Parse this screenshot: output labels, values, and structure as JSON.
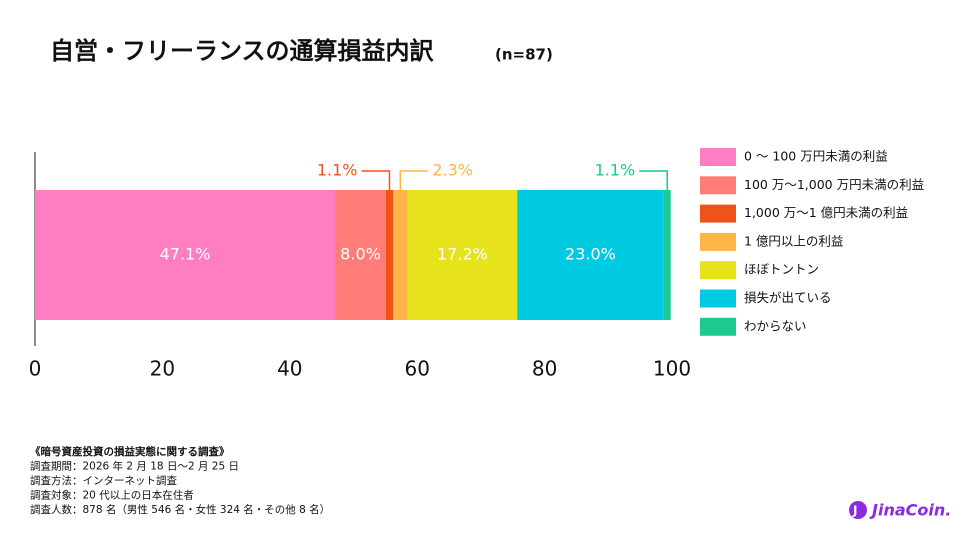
{
  "chart_data": {
    "type": "stacked-bar-horizontal",
    "title": "自営・フリーランスの通算損益内訳",
    "subtitle": "(n=87)",
    "series": [
      {
        "name": "0 〜 100 万円未満の利益",
        "color": "#ff7ec2",
        "values": [
          47.1
        ],
        "value_labels": [
          "47.1%"
        ]
      },
      {
        "name": "100 万〜1,000 万円未満の利益",
        "color": "#ff7c78",
        "values": [
          8.0
        ],
        "value_labels": [
          "8.0%"
        ]
      },
      {
        "name": "1,000 万〜1 億円未満の利益",
        "color": "#ec5418",
        "values": [
          1.1
        ],
        "value_labels": [
          "1.1%"
        ]
      },
      {
        "name": "1 億円以上の利益",
        "color": "#ffb547",
        "values": [
          2.3
        ],
        "value_labels": [
          "2.3%"
        ]
      },
      {
        "name": "ほぼトントン",
        "color": "#e6e31c",
        "values": [
          17.2
        ],
        "value_labels": [
          "17.2%"
        ]
      },
      {
        "name": "損失が出ている",
        "color": "#00c9e2",
        "values": [
          23.0
        ],
        "value_labels": [
          "23.0%"
        ]
      },
      {
        "name": "わからない",
        "color": "#1cc98e",
        "values": [
          1.1
        ],
        "value_labels": [
          "1.1%"
        ]
      }
    ],
    "xlim": [
      0,
      100
    ],
    "xticks": [
      0,
      20,
      40,
      60,
      80,
      100
    ],
    "legend": "right",
    "notes": [
      "《暗号資産投資の損益実態に関する調査》",
      "調査期間：2026 年 2 月 18 日〜2 月 25 日",
      "調査方法：インターネット調査",
      "調査対象：20 代以上の日本在住者",
      "調査人数：878 名（男性 546 名・女性 324 名・その他 8 名）"
    ],
    "logo": "JinaCoin."
  }
}
